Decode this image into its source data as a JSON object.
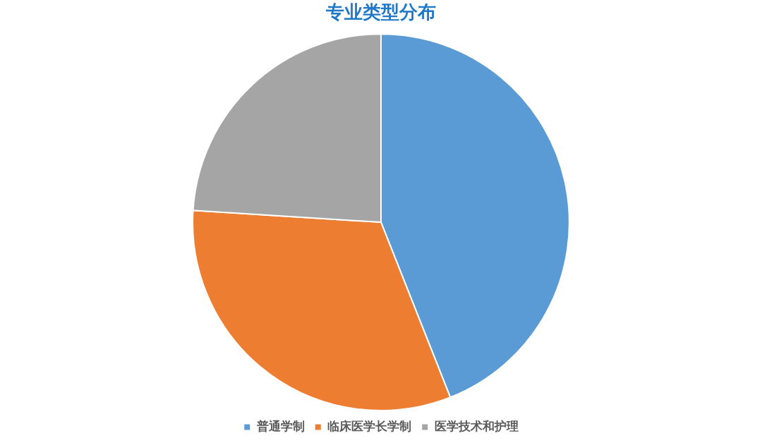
{
  "chart_data": {
    "type": "pie",
    "title": "专业类型分布",
    "categories": [
      "普通学制",
      "临床医学长学制",
      "医学技术和护理"
    ],
    "values": [
      44,
      32,
      24
    ],
    "colors": [
      "#5b9bd5",
      "#ed7d31",
      "#a5a5a5"
    ],
    "legend": "bottom"
  }
}
